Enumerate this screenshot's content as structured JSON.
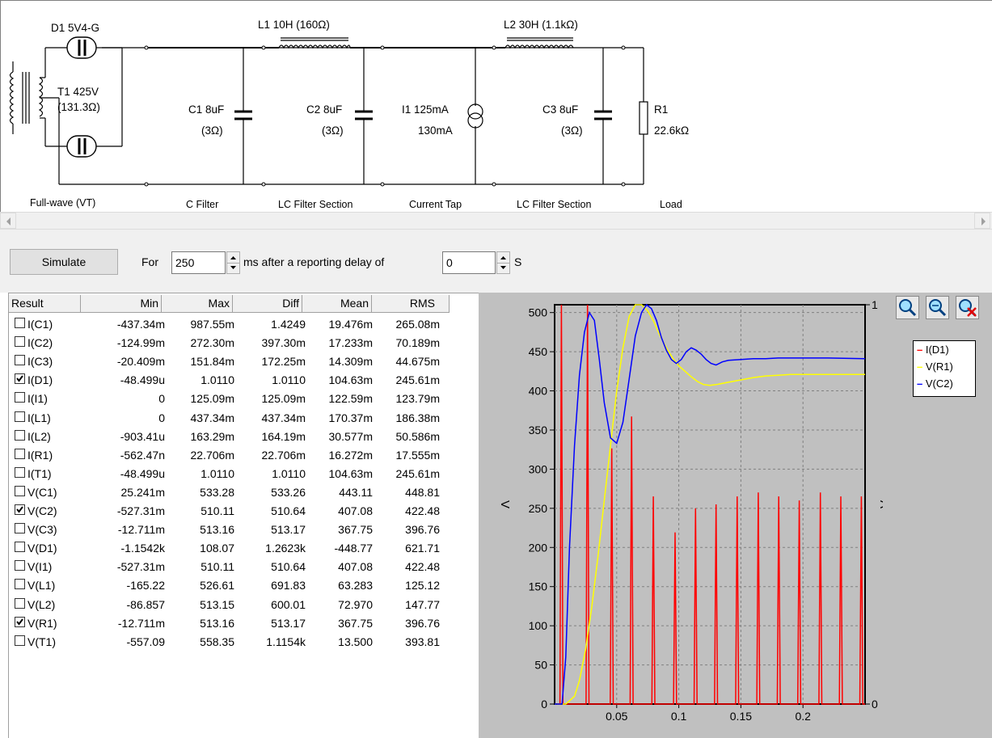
{
  "schematic": {
    "components": {
      "d1": "D1 5V4-G",
      "t1_line1": "T1 425V",
      "t1_line2": "(131.3Ω)",
      "l1": "L1 10H (160Ω)",
      "l2": "L2 30H (1.1kΩ)",
      "c1_line1": "C1 8uF",
      "c1_line2": "(3Ω)",
      "c2_line1": "C2 8uF",
      "c2_line2": "(3Ω)",
      "i1_line1": "I1 125mA",
      "i1_line2": "130mA",
      "c3_line1": "C3 8uF",
      "c3_line2": "(3Ω)",
      "r1_line1": "R1",
      "r1_line2": "22.6kΩ"
    },
    "sections": [
      "Full-wave (VT)",
      "C Filter",
      "LC Filter Section",
      "Current Tap",
      "LC Filter Section",
      "Load"
    ]
  },
  "toolbar": {
    "simulate_label": "Simulate",
    "for_label": "For",
    "duration_value": "250",
    "ms_label": "ms  after a reporting delay of",
    "delay_value": "0",
    "s_label": "S"
  },
  "results": {
    "headers": [
      "Result",
      "Min",
      "Max",
      "Diff",
      "Mean",
      "RMS"
    ],
    "rows": [
      {
        "name": "I(C1)",
        "checked": false,
        "min": "-437.34m",
        "max": "987.55m",
        "diff": "1.4249",
        "mean": "19.476m",
        "rms": "265.08m"
      },
      {
        "name": "I(C2)",
        "checked": false,
        "min": "-124.99m",
        "max": "272.30m",
        "diff": "397.30m",
        "mean": "17.233m",
        "rms": "70.189m"
      },
      {
        "name": "I(C3)",
        "checked": false,
        "min": "-20.409m",
        "max": "151.84m",
        "diff": "172.25m",
        "mean": "14.309m",
        "rms": "44.675m"
      },
      {
        "name": "I(D1)",
        "checked": true,
        "min": "-48.499u",
        "max": "1.0110",
        "diff": "1.0110",
        "mean": "104.63m",
        "rms": "245.61m"
      },
      {
        "name": "I(I1)",
        "checked": false,
        "min": "0",
        "max": "125.09m",
        "diff": "125.09m",
        "mean": "122.59m",
        "rms": "123.79m"
      },
      {
        "name": "I(L1)",
        "checked": false,
        "min": "0",
        "max": "437.34m",
        "diff": "437.34m",
        "mean": "170.37m",
        "rms": "186.38m"
      },
      {
        "name": "I(L2)",
        "checked": false,
        "min": "-903.41u",
        "max": "163.29m",
        "diff": "164.19m",
        "mean": "30.577m",
        "rms": "50.586m"
      },
      {
        "name": "I(R1)",
        "checked": false,
        "min": "-562.47n",
        "max": "22.706m",
        "diff": "22.706m",
        "mean": "16.272m",
        "rms": "17.555m"
      },
      {
        "name": "I(T1)",
        "checked": false,
        "min": "-48.499u",
        "max": "1.0110",
        "diff": "1.0110",
        "mean": "104.63m",
        "rms": "245.61m"
      },
      {
        "name": "V(C1)",
        "checked": false,
        "min": "25.241m",
        "max": "533.28",
        "diff": "533.26",
        "mean": "443.11",
        "rms": "448.81"
      },
      {
        "name": "V(C2)",
        "checked": true,
        "min": "-527.31m",
        "max": "510.11",
        "diff": "510.64",
        "mean": "407.08",
        "rms": "422.48"
      },
      {
        "name": "V(C3)",
        "checked": false,
        "min": "-12.711m",
        "max": "513.16",
        "diff": "513.17",
        "mean": "367.75",
        "rms": "396.76"
      },
      {
        "name": "V(D1)",
        "checked": false,
        "min": "-1.1542k",
        "max": "108.07",
        "diff": "1.2623k",
        "mean": "-448.77",
        "rms": "621.71"
      },
      {
        "name": "V(I1)",
        "checked": false,
        "min": "-527.31m",
        "max": "510.11",
        "diff": "510.64",
        "mean": "407.08",
        "rms": "422.48"
      },
      {
        "name": "V(L1)",
        "checked": false,
        "min": "-165.22",
        "max": "526.61",
        "diff": "691.83",
        "mean": "63.283",
        "rms": "125.12"
      },
      {
        "name": "V(L2)",
        "checked": false,
        "min": "-86.857",
        "max": "513.15",
        "diff": "600.01",
        "mean": "72.970",
        "rms": "147.77"
      },
      {
        "name": "V(R1)",
        "checked": true,
        "min": "-12.711m",
        "max": "513.16",
        "diff": "513.17",
        "mean": "367.75",
        "rms": "396.76"
      },
      {
        "name": "V(T1)",
        "checked": false,
        "min": "-557.09",
        "max": "558.35",
        "diff": "1.1154k",
        "mean": "13.500",
        "rms": "393.81"
      }
    ]
  },
  "icons": {
    "zoom_in": "zoom-in-icon",
    "zoom_out": "zoom-out-icon",
    "zoom_reset": "zoom-reset-icon"
  },
  "chart_data": {
    "type": "line",
    "xlim": [
      0,
      0.25
    ],
    "ylim": [
      0,
      510
    ],
    "y2lim": [
      0,
      1
    ],
    "ylabel": "V",
    "y2label": "A",
    "xticks": [
      "0.05",
      "0.1",
      "0.15",
      "0.2"
    ],
    "xtick_values": [
      0.05,
      0.1,
      0.15,
      0.2
    ],
    "yticks": [
      "0",
      "50",
      "100",
      "150",
      "200",
      "250",
      "300",
      "350",
      "400",
      "450",
      "500"
    ],
    "ytick_values": [
      0,
      50,
      100,
      150,
      200,
      250,
      300,
      350,
      400,
      450,
      500
    ],
    "y2ticks": [
      "0",
      "1"
    ],
    "grid": true,
    "legend_position": "top-right",
    "colors": {
      "I(D1)": "#ff0000",
      "V(R1)": "#ffff00",
      "V(C2)": "#0000ff"
    },
    "series": [
      {
        "name": "I(D1)",
        "axis": "right",
        "peaks": [
          [
            0.0055,
            1.0
          ],
          [
            0.0165,
            0.0
          ],
          [
            0.0265,
            1.0
          ],
          [
            0.046,
            0.64
          ],
          [
            0.062,
            0.72
          ],
          [
            0.0795,
            0.52
          ],
          [
            0.097,
            0.43
          ],
          [
            0.1135,
            0.49
          ],
          [
            0.13,
            0.5
          ],
          [
            0.147,
            0.52
          ],
          [
            0.164,
            0.53
          ],
          [
            0.1805,
            0.52
          ],
          [
            0.197,
            0.51
          ],
          [
            0.214,
            0.53
          ],
          [
            0.2305,
            0.52
          ],
          [
            0.247,
            0.52
          ]
        ]
      },
      {
        "name": "V(R1)",
        "axis": "left",
        "x": [
          0,
          0.009,
          0.012,
          0.016,
          0.02,
          0.025,
          0.03,
          0.035,
          0.04,
          0.045,
          0.05,
          0.055,
          0.06,
          0.065,
          0.07,
          0.075,
          0.08,
          0.085,
          0.09,
          0.095,
          0.1,
          0.105,
          0.11,
          0.115,
          0.12,
          0.125,
          0.13,
          0.14,
          0.15,
          0.16,
          0.17,
          0.18,
          0.19,
          0.2,
          0.22,
          0.25
        ],
        "y": [
          0,
          0,
          4,
          10,
          30,
          70,
          125,
          190,
          260,
          330,
          400,
          455,
          495,
          510,
          510,
          502,
          488,
          470,
          455,
          442,
          432,
          425,
          418,
          412,
          408,
          407,
          408,
          411,
          414,
          417,
          419,
          420,
          421,
          421,
          421,
          421
        ]
      },
      {
        "name": "V(C2)",
        "axis": "left",
        "x": [
          0,
          0.006,
          0.009,
          0.012,
          0.016,
          0.02,
          0.024,
          0.028,
          0.032,
          0.036,
          0.04,
          0.045,
          0.05,
          0.055,
          0.06,
          0.065,
          0.07,
          0.074,
          0.078,
          0.082,
          0.086,
          0.09,
          0.094,
          0.098,
          0.102,
          0.106,
          0.11,
          0.114,
          0.118,
          0.122,
          0.126,
          0.13,
          0.135,
          0.14,
          0.15,
          0.16,
          0.17,
          0.18,
          0.2,
          0.22,
          0.25
        ],
        "y": [
          0,
          0,
          60,
          200,
          330,
          420,
          475,
          500,
          490,
          440,
          385,
          340,
          333,
          360,
          415,
          470,
          500,
          510,
          505,
          490,
          468,
          452,
          440,
          435,
          440,
          450,
          455,
          452,
          447,
          440,
          435,
          433,
          437,
          439,
          440,
          441,
          441,
          442,
          442,
          442,
          441
        ]
      }
    ]
  }
}
